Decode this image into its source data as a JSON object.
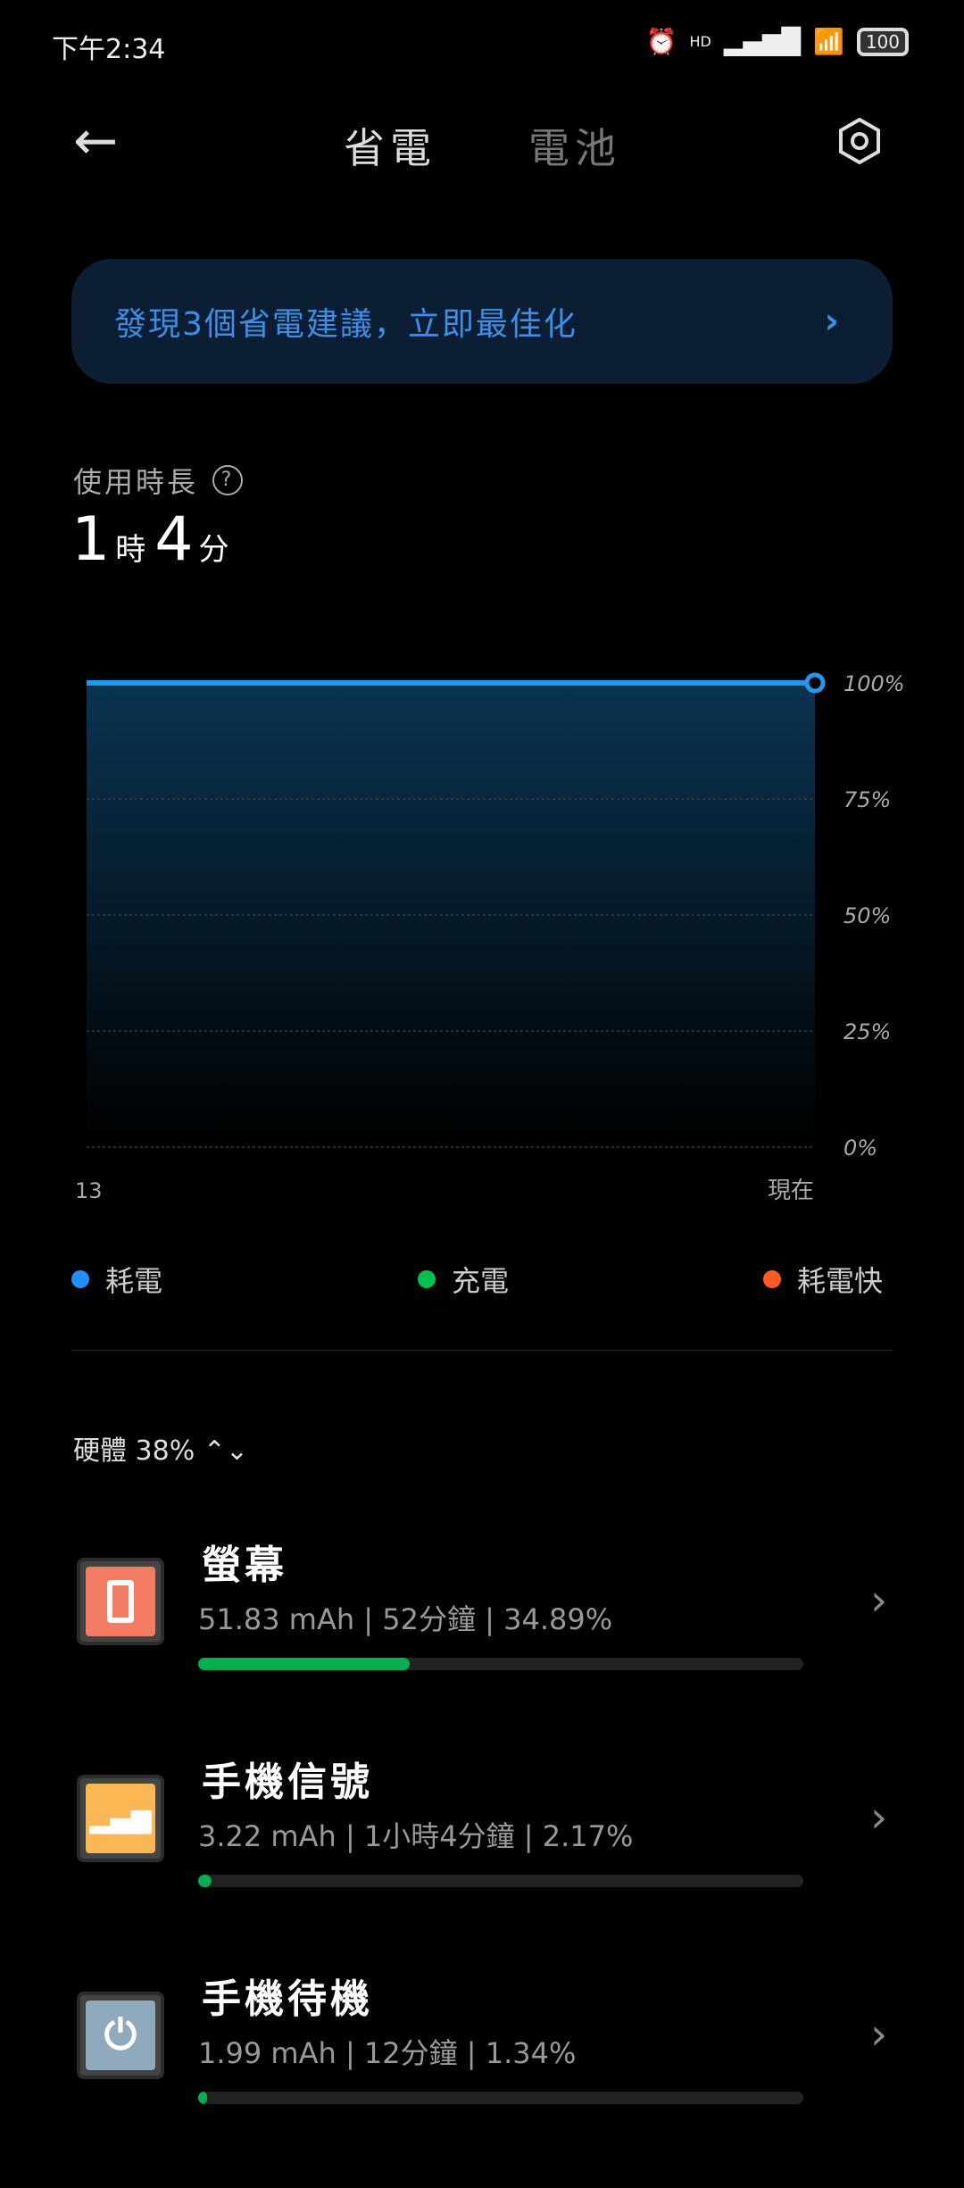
{
  "status": {
    "time": "下午2:34",
    "network": "HD",
    "battery": "100"
  },
  "header": {
    "tabs": [
      "省電",
      "電池"
    ],
    "active_tab": 0
  },
  "banner": {
    "text": "發現3個省電建議，立即最佳化"
  },
  "usage": {
    "label": "使用時長",
    "hours": "1",
    "hours_unit": "時",
    "minutes": "4",
    "minutes_unit": "分"
  },
  "chart_data": {
    "type": "area",
    "x_labels": [
      "13",
      "現在"
    ],
    "y_ticks": [
      "0%",
      "25%",
      "50%",
      "75%",
      "100%"
    ],
    "ylim": [
      0,
      100
    ],
    "values": [
      100,
      100
    ],
    "line_color": "#1e9bf0",
    "grid": true
  },
  "legend": [
    {
      "label": "耗電",
      "color": "#1e90ff"
    },
    {
      "label": "充電",
      "color": "#00c050"
    },
    {
      "label": "耗電快",
      "color": "#ff5a1f"
    }
  ],
  "hardware": {
    "label": "硬體 38%"
  },
  "items": [
    {
      "title": "螢幕",
      "detail": "51.83 mAh | 52分鐘 | 34.89%",
      "percent": 34.89,
      "icon": "phone-screen",
      "color": "#f47c62"
    },
    {
      "title": "手機信號",
      "detail": "3.22 mAh | 1小時4分鐘 | 2.17%",
      "percent": 2.17,
      "icon": "signal",
      "color": "#fbb753"
    },
    {
      "title": "手機待機",
      "detail": "1.99 mAh | 12分鐘 | 1.34%",
      "percent": 1.34,
      "icon": "power",
      "color": "#8fa9bd"
    }
  ]
}
